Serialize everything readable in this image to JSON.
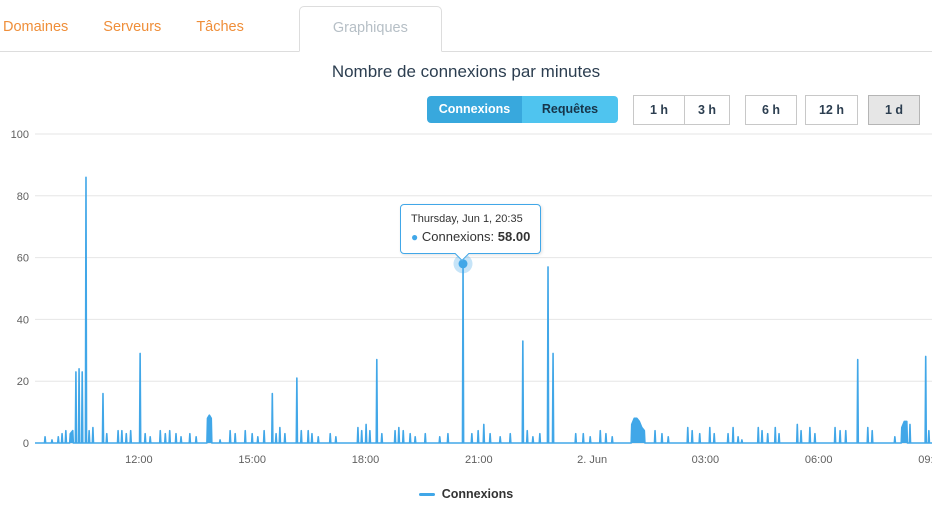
{
  "tabs": {
    "items": [
      {
        "label": "Domaines",
        "active": false
      },
      {
        "label": "Serveurs",
        "active": false
      },
      {
        "label": "Tâches",
        "active": false
      },
      {
        "label": "Graphiques",
        "active": true
      }
    ]
  },
  "chart": {
    "title": "Nombre de connexions par minutes",
    "series_toggle": [
      {
        "label": "Connexions",
        "selected": true
      },
      {
        "label": "Requêtes",
        "selected": false
      }
    ],
    "range_buttons": [
      {
        "label": "1 h",
        "selected": false
      },
      {
        "label": "3 h",
        "selected": false
      },
      {
        "label": "6 h",
        "selected": false
      },
      {
        "label": "12 h",
        "selected": false
      },
      {
        "label": "1 d",
        "selected": true
      }
    ],
    "tooltip": {
      "header": "Thursday, Jun 1, 20:35",
      "bullet": "●",
      "series_label": "Connexions:",
      "value": "58.00"
    },
    "legend": {
      "label": "Connexions"
    }
  },
  "colors": {
    "series_blue": "#41a7e8",
    "accent_orange": "#ef8e39",
    "navy": "#2c3e50",
    "gridline": "#e6e6e6",
    "axis_line": "#cfd8de",
    "toggle_selected": "#38a8dd",
    "toggle_unselected": "#4fc4ef"
  },
  "chart_data": {
    "type": "line",
    "title": "Nombre de connexions par minutes",
    "series_name": "Connexions",
    "color": "#41a7e8",
    "x_start_label": "Jun 1 09:15",
    "x_span_minutes": 1425,
    "ylim": [
      0,
      100
    ],
    "y_ticks": [
      0,
      20,
      40,
      60,
      80,
      100
    ],
    "grid": true,
    "legend_position": "bottom",
    "x_ticks": [
      {
        "label": "12:00",
        "offset": 165
      },
      {
        "label": "15:00",
        "offset": 345
      },
      {
        "label": "18:00",
        "offset": 525
      },
      {
        "label": "2. Jun",
        "offset": 885
      },
      {
        "label": "21:00",
        "offset": 705
      },
      {
        "label": "03:00",
        "offset": 1065
      },
      {
        "label": "06:00",
        "offset": 1245
      },
      {
        "label": "09:00",
        "offset": 1425
      }
    ],
    "highlight_point": {
      "offset": 680,
      "value": 58,
      "label": "Thursday, Jun 1, 20:35"
    },
    "points": [
      [
        16,
        2
      ],
      [
        27,
        1
      ],
      [
        37,
        2
      ],
      [
        43,
        3
      ],
      [
        49,
        4
      ],
      [
        56,
        3
      ],
      [
        60,
        4
      ],
      [
        65,
        23
      ],
      [
        70,
        24
      ],
      [
        75,
        23
      ],
      [
        81,
        86
      ],
      [
        86,
        4
      ],
      [
        92,
        5
      ],
      [
        108,
        16
      ],
      [
        114,
        3
      ],
      [
        132,
        4
      ],
      [
        138,
        4
      ],
      [
        145,
        3
      ],
      [
        152,
        4
      ],
      [
        167,
        29
      ],
      [
        175,
        3
      ],
      [
        183,
        2
      ],
      [
        199,
        4
      ],
      [
        207,
        3
      ],
      [
        214,
        4
      ],
      [
        224,
        3
      ],
      [
        232,
        2
      ],
      [
        246,
        3
      ],
      [
        256,
        2
      ],
      [
        274,
        8
      ],
      [
        277,
        9
      ],
      [
        280,
        8
      ],
      [
        294,
        1
      ],
      [
        310,
        4
      ],
      [
        318,
        3
      ],
      [
        334,
        4
      ],
      [
        345,
        3
      ],
      [
        354,
        2
      ],
      [
        364,
        4
      ],
      [
        377,
        16
      ],
      [
        383,
        3
      ],
      [
        389,
        5
      ],
      [
        397,
        3
      ],
      [
        416,
        21
      ],
      [
        423,
        4
      ],
      [
        434,
        4
      ],
      [
        440,
        3
      ],
      [
        450,
        2
      ],
      [
        469,
        3
      ],
      [
        478,
        2
      ],
      [
        513,
        5
      ],
      [
        519,
        4
      ],
      [
        526,
        6
      ],
      [
        532,
        4
      ],
      [
        543,
        27
      ],
      [
        551,
        3
      ],
      [
        572,
        4
      ],
      [
        578,
        5
      ],
      [
        585,
        4
      ],
      [
        596,
        3
      ],
      [
        604,
        2
      ],
      [
        620,
        3
      ],
      [
        643,
        2
      ],
      [
        656,
        3
      ],
      [
        680,
        58
      ],
      [
        694,
        3
      ],
      [
        704,
        4
      ],
      [
        713,
        6
      ],
      [
        723,
        3
      ],
      [
        739,
        2
      ],
      [
        755,
        3
      ],
      [
        775,
        33
      ],
      [
        782,
        4
      ],
      [
        791,
        2
      ],
      [
        802,
        3
      ],
      [
        815,
        57
      ],
      [
        823,
        29
      ],
      [
        859,
        3
      ],
      [
        871,
        3
      ],
      [
        882,
        2
      ],
      [
        898,
        4
      ],
      [
        907,
        3
      ],
      [
        917,
        2
      ],
      [
        948,
        6
      ],
      [
        952,
        8
      ],
      [
        956,
        8
      ],
      [
        960,
        7
      ],
      [
        964,
        5
      ],
      [
        968,
        4
      ],
      [
        985,
        4
      ],
      [
        996,
        3
      ],
      [
        1006,
        2
      ],
      [
        1037,
        5
      ],
      [
        1044,
        4
      ],
      [
        1056,
        3
      ],
      [
        1072,
        5
      ],
      [
        1079,
        3
      ],
      [
        1101,
        3
      ],
      [
        1109,
        5
      ],
      [
        1117,
        2
      ],
      [
        1123,
        1
      ],
      [
        1149,
        5
      ],
      [
        1155,
        4
      ],
      [
        1164,
        3
      ],
      [
        1176,
        5
      ],
      [
        1182,
        3
      ],
      [
        1211,
        6
      ],
      [
        1217,
        4
      ],
      [
        1231,
        5
      ],
      [
        1239,
        3
      ],
      [
        1271,
        5
      ],
      [
        1279,
        4
      ],
      [
        1288,
        4
      ],
      [
        1307,
        27
      ],
      [
        1323,
        5
      ],
      [
        1330,
        4
      ],
      [
        1366,
        2
      ],
      [
        1377,
        5
      ],
      [
        1381,
        7
      ],
      [
        1385,
        7
      ],
      [
        1390,
        6
      ],
      [
        1415,
        28
      ],
      [
        1420,
        4
      ]
    ]
  }
}
